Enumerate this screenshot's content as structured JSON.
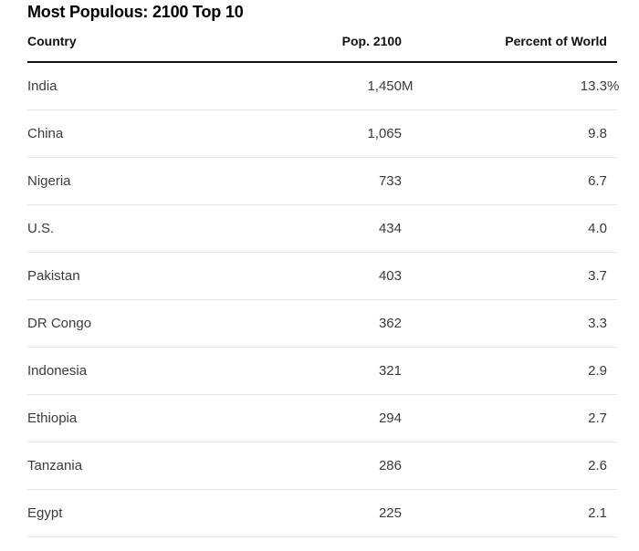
{
  "table": {
    "title": "Most Populous: 2100 Top 10",
    "columns": {
      "country": "Country",
      "pop": "Pop. 2100",
      "pct": "Percent of World"
    },
    "rows": [
      {
        "country": "India",
        "pop": "1,450",
        "pop_suffix": "M",
        "pct": "13.3",
        "pct_suffix": "%"
      },
      {
        "country": "China",
        "pop": "1,065",
        "pop_suffix": "",
        "pct": "9.8",
        "pct_suffix": ""
      },
      {
        "country": "Nigeria",
        "pop": "733",
        "pop_suffix": "",
        "pct": "6.7",
        "pct_suffix": ""
      },
      {
        "country": "U.S.",
        "pop": "434",
        "pop_suffix": "",
        "pct": "4.0",
        "pct_suffix": ""
      },
      {
        "country": "Pakistan",
        "pop": "403",
        "pop_suffix": "",
        "pct": "3.7",
        "pct_suffix": ""
      },
      {
        "country": "DR Congo",
        "pop": "362",
        "pop_suffix": "",
        "pct": "3.3",
        "pct_suffix": ""
      },
      {
        "country": "Indonesia",
        "pop": "321",
        "pop_suffix": "",
        "pct": "2.9",
        "pct_suffix": ""
      },
      {
        "country": "Ethiopia",
        "pop": "294",
        "pop_suffix": "",
        "pct": "2.7",
        "pct_suffix": ""
      },
      {
        "country": "Tanzania",
        "pop": "286",
        "pop_suffix": "",
        "pct": "2.6",
        "pct_suffix": ""
      },
      {
        "country": "Egypt",
        "pop": "225",
        "pop_suffix": "",
        "pct": "2.1",
        "pct_suffix": ""
      }
    ]
  },
  "colors": {
    "title_text": "#000000",
    "header_text": "#111111",
    "body_text": "#3b3b3b",
    "thick_rule": "#111111",
    "hairline": "#e3e3e3",
    "background": "#ffffff"
  },
  "chart_data": {
    "type": "table",
    "title": "Most Populous: 2100 Top 10",
    "columns": [
      "Country",
      "Pop. 2100",
      "Percent of World"
    ],
    "rows": [
      [
        "India",
        "1,450M",
        "13.3%"
      ],
      [
        "China",
        "1,065",
        "9.8"
      ],
      [
        "Nigeria",
        "733",
        "6.7"
      ],
      [
        "U.S.",
        "434",
        "4.0"
      ],
      [
        "Pakistan",
        "403",
        "3.7"
      ],
      [
        "DR Congo",
        "362",
        "3.3"
      ],
      [
        "Indonesia",
        "321",
        "2.9"
      ],
      [
        "Ethiopia",
        "294",
        "2.7"
      ],
      [
        "Tanzania",
        "286",
        "2.6"
      ],
      [
        "Egypt",
        "225",
        "2.1"
      ]
    ],
    "population_millions": [
      1450,
      1065,
      733,
      434,
      403,
      362,
      321,
      294,
      286,
      225
    ],
    "percent_of_world": [
      13.3,
      9.8,
      6.7,
      4.0,
      3.7,
      3.3,
      2.9,
      2.7,
      2.6,
      2.1
    ]
  }
}
